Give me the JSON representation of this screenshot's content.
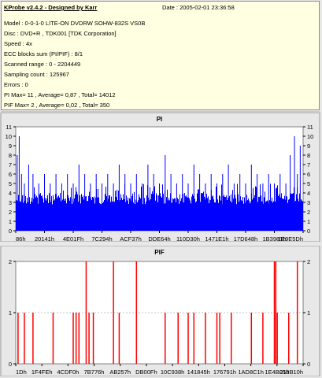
{
  "info": {
    "title": "KProbe v2.4.2 - Designed by Karr",
    "date": "Date : 2005-02-01 23:36:58",
    "lines": [
      "Model : 0-0-1-0 LITE-ON DVDRW SOHW-832S  VS0B",
      "Disc : DVD+R , TDK001 [TDK Corporation]",
      "Speed : 4x",
      "ECC blocks sum (PI/PIF) : 8/1",
      "Scanned range : 0 - 2204449",
      "Sampling count : 125967",
      "Errors : 0",
      "PI Max= 11 , Average= 0,87 , Total= 14012",
      "PIF Max= 2 , Average= 0,02 , Total= 350"
    ]
  },
  "chart_data": [
    {
      "type": "bar",
      "title": "PI",
      "ylim": [
        0,
        11
      ],
      "yticks": [
        0,
        1,
        2,
        3,
        4,
        5,
        6,
        7,
        8,
        9,
        10,
        11
      ],
      "xtick_labels": [
        "86h",
        "20141h",
        "4E01Fh",
        "7C294h",
        "ACF37h",
        "DDE64h",
        "110D30h",
        "1471E1h",
        "17D648h",
        "1B3981h",
        "1E9E5Dh"
      ],
      "baseline": 4,
      "color": "#0000ff",
      "background": "#ffffff",
      "spikes": [
        [
          0.005,
          8
        ],
        [
          0.012,
          10
        ],
        [
          0.02,
          6
        ],
        [
          0.03,
          5
        ],
        [
          0.045,
          7
        ],
        [
          0.06,
          6
        ],
        [
          0.08,
          5
        ],
        [
          0.1,
          6
        ],
        [
          0.12,
          5
        ],
        [
          0.14,
          6
        ],
        [
          0.16,
          5
        ],
        [
          0.18,
          6
        ],
        [
          0.2,
          5
        ],
        [
          0.22,
          7
        ],
        [
          0.24,
          6
        ],
        [
          0.26,
          5
        ],
        [
          0.28,
          6
        ],
        [
          0.3,
          5
        ],
        [
          0.32,
          6
        ],
        [
          0.34,
          5
        ],
        [
          0.36,
          7
        ],
        [
          0.38,
          6
        ],
        [
          0.4,
          5
        ],
        [
          0.42,
          6
        ],
        [
          0.44,
          5
        ],
        [
          0.46,
          7
        ],
        [
          0.48,
          6
        ],
        [
          0.5,
          5
        ],
        [
          0.52,
          8
        ],
        [
          0.54,
          6
        ],
        [
          0.56,
          5
        ],
        [
          0.58,
          6
        ],
        [
          0.6,
          5
        ],
        [
          0.62,
          7
        ],
        [
          0.64,
          6
        ],
        [
          0.66,
          5
        ],
        [
          0.68,
          6
        ],
        [
          0.7,
          5
        ],
        [
          0.72,
          6
        ],
        [
          0.74,
          7
        ],
        [
          0.76,
          5
        ],
        [
          0.78,
          6
        ],
        [
          0.8,
          5
        ],
        [
          0.82,
          7
        ],
        [
          0.84,
          6
        ],
        [
          0.86,
          5
        ],
        [
          0.88,
          6
        ],
        [
          0.9,
          5
        ],
        [
          0.92,
          6
        ],
        [
          0.94,
          5
        ],
        [
          0.955,
          8
        ],
        [
          0.97,
          10
        ],
        [
          0.98,
          6
        ],
        [
          0.99,
          9
        ]
      ]
    },
    {
      "type": "bar",
      "title": "PIF",
      "ylim": [
        0,
        2
      ],
      "yticks": [
        0,
        1,
        2
      ],
      "xtick_labels": [
        "1Dh",
        "1F4FEh",
        "4CDF0h",
        "7B776h",
        "AB257h",
        "DB00Fh",
        "10C938h",
        "141845h",
        "176791h",
        "1AD8C1h",
        "1E4B05h",
        "219B10h"
      ],
      "color": "#ff0000",
      "background": "#ffffff",
      "bars": [
        [
          0.008,
          1
        ],
        [
          0.03,
          1
        ],
        [
          0.06,
          1
        ],
        [
          0.13,
          1
        ],
        [
          0.2,
          1
        ],
        [
          0.21,
          1
        ],
        [
          0.22,
          1
        ],
        [
          0.245,
          2
        ],
        [
          0.255,
          1
        ],
        [
          0.27,
          1
        ],
        [
          0.34,
          2
        ],
        [
          0.36,
          1
        ],
        [
          0.42,
          2
        ],
        [
          0.52,
          1
        ],
        [
          0.565,
          1
        ],
        [
          0.6,
          1
        ],
        [
          0.62,
          1
        ],
        [
          0.66,
          1
        ],
        [
          0.7,
          1
        ],
        [
          0.71,
          1
        ],
        [
          0.75,
          1
        ],
        [
          0.82,
          1
        ],
        [
          0.86,
          1
        ],
        [
          0.9,
          2
        ],
        [
          0.905,
          2
        ],
        [
          0.91,
          1
        ],
        [
          0.95,
          1
        ],
        [
          0.98,
          2
        ]
      ]
    }
  ]
}
